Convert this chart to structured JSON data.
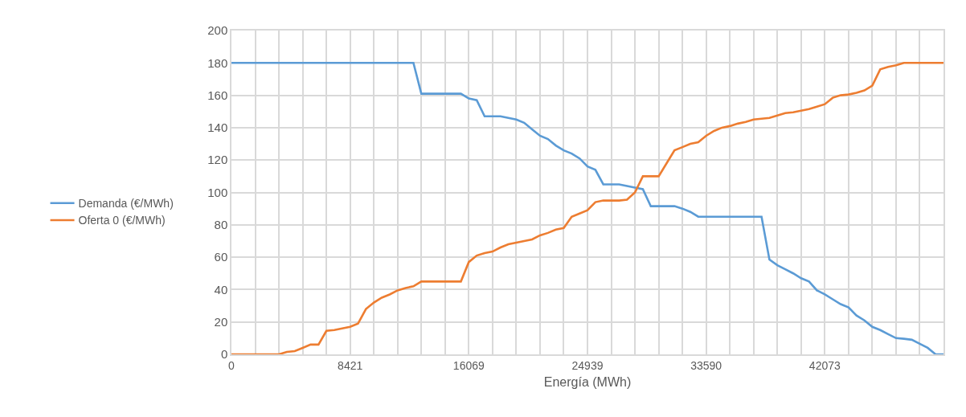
{
  "chart_data": {
    "type": "line",
    "xlabel": "Energía (MWh)",
    "categories": [
      "0",
      null,
      null,
      null,
      null,
      null,
      null,
      null,
      null,
      null,
      null,
      null,
      null,
      null,
      null,
      "8421",
      null,
      null,
      null,
      null,
      null,
      null,
      null,
      null,
      null,
      null,
      null,
      null,
      null,
      null,
      "16069",
      null,
      null,
      null,
      null,
      null,
      null,
      null,
      null,
      null,
      null,
      null,
      null,
      null,
      null,
      "24939",
      null,
      null,
      null,
      null,
      null,
      null,
      null,
      null,
      null,
      null,
      null,
      null,
      null,
      null,
      "33590",
      null,
      null,
      null,
      null,
      null,
      null,
      null,
      null,
      null,
      null,
      null,
      null,
      null,
      null,
      "42073",
      null,
      null,
      null,
      null,
      null,
      null,
      null,
      null,
      null,
      null,
      null,
      null,
      null,
      null,
      null
    ],
    "series": [
      {
        "name": "Demanda (€/MWh)",
        "color": "#5b9bd5",
        "values": [
          180,
          180,
          180,
          180,
          180,
          180,
          180,
          180,
          180,
          180,
          180,
          180,
          180,
          180,
          180,
          180,
          180,
          180,
          180,
          180,
          180,
          180,
          180,
          180,
          161,
          161,
          161,
          161,
          161,
          161,
          158,
          157,
          147,
          147,
          147,
          146,
          145,
          143,
          139,
          135,
          133,
          129,
          126,
          124,
          121,
          116,
          114,
          105,
          105,
          105,
          104,
          103,
          102,
          91.5,
          91.5,
          91.5,
          91.5,
          90,
          88,
          85,
          85,
          85,
          85,
          85,
          85,
          85,
          85,
          85,
          58.5,
          55,
          52.5,
          50,
          47,
          45,
          39.5,
          37,
          34,
          31,
          29,
          24,
          21,
          17,
          15,
          12.5,
          10,
          9.6,
          9,
          6.5,
          4,
          0,
          0
        ]
      },
      {
        "name": "Oferta 0 (€/MWh)",
        "color": "#ed7d31",
        "values": [
          0,
          0,
          0,
          0,
          0,
          0,
          0,
          1.5,
          2,
          4,
          6,
          6,
          14.5,
          15,
          16,
          17,
          19,
          28,
          32,
          35,
          37,
          39.5,
          41,
          42,
          45,
          45,
          45,
          45,
          45,
          45,
          57,
          61,
          62.5,
          63.5,
          66,
          68,
          69,
          70,
          71,
          73.5,
          75,
          77,
          78,
          85,
          87,
          89,
          94,
          95,
          95,
          95,
          95.5,
          100,
          110,
          110,
          110,
          118,
          126,
          128,
          130,
          131,
          135,
          138,
          140,
          141,
          142.5,
          143.5,
          145,
          145.5,
          146,
          147.5,
          149,
          149.5,
          150.5,
          151.5,
          153,
          154.5,
          158.5,
          160,
          160.5,
          161.5,
          163,
          166,
          176,
          177.5,
          178.5,
          180,
          180,
          180,
          180,
          180,
          180
        ]
      }
    ],
    "ylim": [
      0,
      200
    ],
    "yticks": [
      0,
      20,
      40,
      60,
      80,
      100,
      120,
      140,
      160,
      180,
      200
    ],
    "grid": true,
    "legend": "left",
    "marker": "none",
    "line_style": "solid"
  }
}
